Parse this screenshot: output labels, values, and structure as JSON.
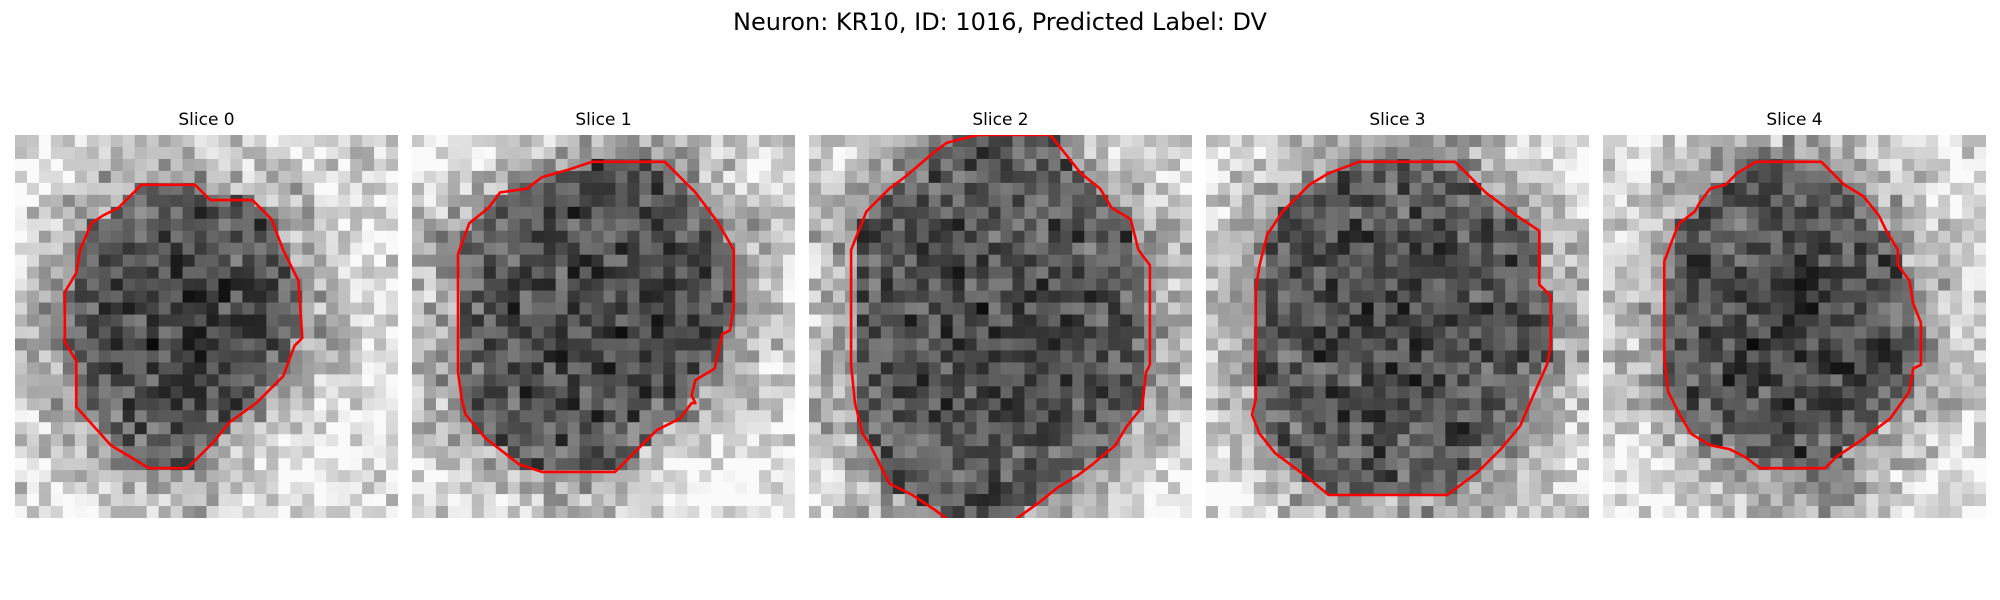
{
  "figure": {
    "title": "Neuron: KR10, ID: 1016, Predicted Label: DV"
  },
  "panels": [
    {
      "title": "Slice 0",
      "seed": 11,
      "outline_color": "#ff0000",
      "outline": [
        [
          0.33,
          0.13
        ],
        [
          0.47,
          0.13
        ],
        [
          0.51,
          0.17
        ],
        [
          0.62,
          0.17
        ],
        [
          0.67,
          0.22
        ],
        [
          0.7,
          0.3
        ],
        [
          0.74,
          0.38
        ],
        [
          0.75,
          0.53
        ],
        [
          0.73,
          0.55
        ],
        [
          0.7,
          0.63
        ],
        [
          0.63,
          0.7
        ],
        [
          0.56,
          0.75
        ],
        [
          0.52,
          0.8
        ],
        [
          0.5,
          0.82
        ],
        [
          0.45,
          0.87
        ],
        [
          0.35,
          0.87
        ],
        [
          0.25,
          0.81
        ],
        [
          0.16,
          0.71
        ],
        [
          0.16,
          0.59
        ],
        [
          0.13,
          0.54
        ],
        [
          0.13,
          0.41
        ],
        [
          0.16,
          0.36
        ],
        [
          0.17,
          0.3
        ],
        [
          0.2,
          0.23
        ],
        [
          0.23,
          0.21
        ],
        [
          0.27,
          0.19
        ]
      ],
      "dark_blobs": [
        [
          0.45,
          0.48,
          0.3,
          0.7
        ]
      ],
      "bright_blobs": [
        [
          0.82,
          0.82,
          0.2,
          0.6
        ],
        [
          0.1,
          0.1,
          0.15,
          0.35
        ]
      ]
    },
    {
      "title": "Slice 1",
      "seed": 23,
      "outline_color": "#ff0000",
      "outline": [
        [
          0.47,
          0.07
        ],
        [
          0.66,
          0.07
        ],
        [
          0.74,
          0.15
        ],
        [
          0.8,
          0.23
        ],
        [
          0.84,
          0.3
        ],
        [
          0.84,
          0.45
        ],
        [
          0.83,
          0.51
        ],
        [
          0.81,
          0.52
        ],
        [
          0.79,
          0.61
        ],
        [
          0.74,
          0.64
        ],
        [
          0.73,
          0.68
        ],
        [
          0.74,
          0.7
        ],
        [
          0.73,
          0.7
        ],
        [
          0.7,
          0.74
        ],
        [
          0.64,
          0.77
        ],
        [
          0.58,
          0.83
        ],
        [
          0.53,
          0.88
        ],
        [
          0.34,
          0.88
        ],
        [
          0.28,
          0.86
        ],
        [
          0.19,
          0.79
        ],
        [
          0.14,
          0.73
        ],
        [
          0.13,
          0.69
        ],
        [
          0.12,
          0.62
        ],
        [
          0.12,
          0.31
        ],
        [
          0.15,
          0.23
        ],
        [
          0.2,
          0.19
        ],
        [
          0.23,
          0.15
        ],
        [
          0.3,
          0.14
        ],
        [
          0.34,
          0.11
        ],
        [
          0.41,
          0.09
        ]
      ],
      "dark_blobs": [
        [
          0.5,
          0.45,
          0.38,
          0.55
        ],
        [
          0.03,
          0.3,
          0.1,
          0.55
        ]
      ],
      "bright_blobs": [
        [
          0.75,
          0.9,
          0.25,
          0.7
        ],
        [
          0.2,
          0.05,
          0.25,
          0.5
        ]
      ]
    },
    {
      "title": "Slice 2",
      "seed": 37,
      "outline_color": "#ff0000",
      "outline": [
        [
          0.44,
          0.0
        ],
        [
          0.63,
          0.0
        ],
        [
          0.71,
          0.1
        ],
        [
          0.76,
          0.14
        ],
        [
          0.79,
          0.19
        ],
        [
          0.84,
          0.22
        ],
        [
          0.86,
          0.3
        ],
        [
          0.89,
          0.34
        ],
        [
          0.89,
          0.6
        ],
        [
          0.88,
          0.62
        ],
        [
          0.87,
          0.71
        ],
        [
          0.83,
          0.76
        ],
        [
          0.8,
          0.81
        ],
        [
          0.74,
          0.86
        ],
        [
          0.7,
          0.89
        ],
        [
          0.65,
          0.92
        ],
        [
          0.6,
          0.96
        ],
        [
          0.53,
          1.01
        ],
        [
          0.37,
          1.01
        ],
        [
          0.33,
          0.98
        ],
        [
          0.27,
          0.94
        ],
        [
          0.21,
          0.91
        ],
        [
          0.18,
          0.85
        ],
        [
          0.16,
          0.81
        ],
        [
          0.14,
          0.78
        ],
        [
          0.12,
          0.7
        ],
        [
          0.11,
          0.6
        ],
        [
          0.11,
          0.3
        ],
        [
          0.15,
          0.2
        ],
        [
          0.18,
          0.17
        ],
        [
          0.21,
          0.14
        ],
        [
          0.25,
          0.11
        ],
        [
          0.32,
          0.05
        ],
        [
          0.36,
          0.02
        ]
      ],
      "dark_blobs": [
        [
          0.5,
          0.5,
          0.4,
          0.4
        ]
      ],
      "bright_blobs": [
        [
          0.9,
          0.95,
          0.15,
          0.4
        ]
      ]
    },
    {
      "title": "Slice 3",
      "seed": 53,
      "outline_color": "#ff0000",
      "outline": [
        [
          0.4,
          0.07
        ],
        [
          0.65,
          0.07
        ],
        [
          0.73,
          0.15
        ],
        [
          0.81,
          0.21
        ],
        [
          0.87,
          0.25
        ],
        [
          0.87,
          0.39
        ],
        [
          0.9,
          0.42
        ],
        [
          0.9,
          0.55
        ],
        [
          0.89,
          0.6
        ],
        [
          0.85,
          0.69
        ],
        [
          0.82,
          0.76
        ],
        [
          0.77,
          0.82
        ],
        [
          0.71,
          0.88
        ],
        [
          0.63,
          0.94
        ],
        [
          0.32,
          0.94
        ],
        [
          0.26,
          0.89
        ],
        [
          0.18,
          0.83
        ],
        [
          0.14,
          0.78
        ],
        [
          0.12,
          0.73
        ],
        [
          0.13,
          0.69
        ],
        [
          0.13,
          0.4
        ],
        [
          0.14,
          0.34
        ],
        [
          0.16,
          0.26
        ],
        [
          0.2,
          0.2
        ],
        [
          0.27,
          0.13
        ],
        [
          0.32,
          0.1
        ]
      ],
      "dark_blobs": [
        [
          0.5,
          0.5,
          0.4,
          0.4
        ]
      ],
      "bright_blobs": [
        [
          0.95,
          0.1,
          0.2,
          0.4
        ],
        [
          0.05,
          0.95,
          0.2,
          0.4
        ]
      ]
    },
    {
      "title": "Slice 4",
      "seed": 71,
      "outline_color": "#ff0000",
      "outline": [
        [
          0.4,
          0.07
        ],
        [
          0.57,
          0.07
        ],
        [
          0.63,
          0.13
        ],
        [
          0.68,
          0.16
        ],
        [
          0.72,
          0.21
        ],
        [
          0.74,
          0.25
        ],
        [
          0.77,
          0.3
        ],
        [
          0.77,
          0.34
        ],
        [
          0.8,
          0.38
        ],
        [
          0.81,
          0.44
        ],
        [
          0.83,
          0.49
        ],
        [
          0.83,
          0.6
        ],
        [
          0.81,
          0.61
        ],
        [
          0.8,
          0.67
        ],
        [
          0.75,
          0.74
        ],
        [
          0.67,
          0.8
        ],
        [
          0.61,
          0.84
        ],
        [
          0.58,
          0.87
        ],
        [
          0.41,
          0.87
        ],
        [
          0.37,
          0.84
        ],
        [
          0.33,
          0.82
        ],
        [
          0.28,
          0.81
        ],
        [
          0.23,
          0.78
        ],
        [
          0.2,
          0.73
        ],
        [
          0.17,
          0.67
        ],
        [
          0.16,
          0.58
        ],
        [
          0.16,
          0.33
        ],
        [
          0.19,
          0.25
        ],
        [
          0.2,
          0.23
        ],
        [
          0.24,
          0.2
        ],
        [
          0.25,
          0.18
        ],
        [
          0.28,
          0.14
        ],
        [
          0.32,
          0.13
        ],
        [
          0.35,
          0.1
        ]
      ],
      "dark_blobs": [
        [
          0.5,
          0.48,
          0.35,
          0.55
        ],
        [
          0.6,
          0.98,
          0.25,
          0.6
        ],
        [
          0.3,
          0.02,
          0.12,
          0.5
        ]
      ],
      "bright_blobs": [
        [
          0.12,
          0.82,
          0.15,
          0.4
        ]
      ]
    }
  ]
}
